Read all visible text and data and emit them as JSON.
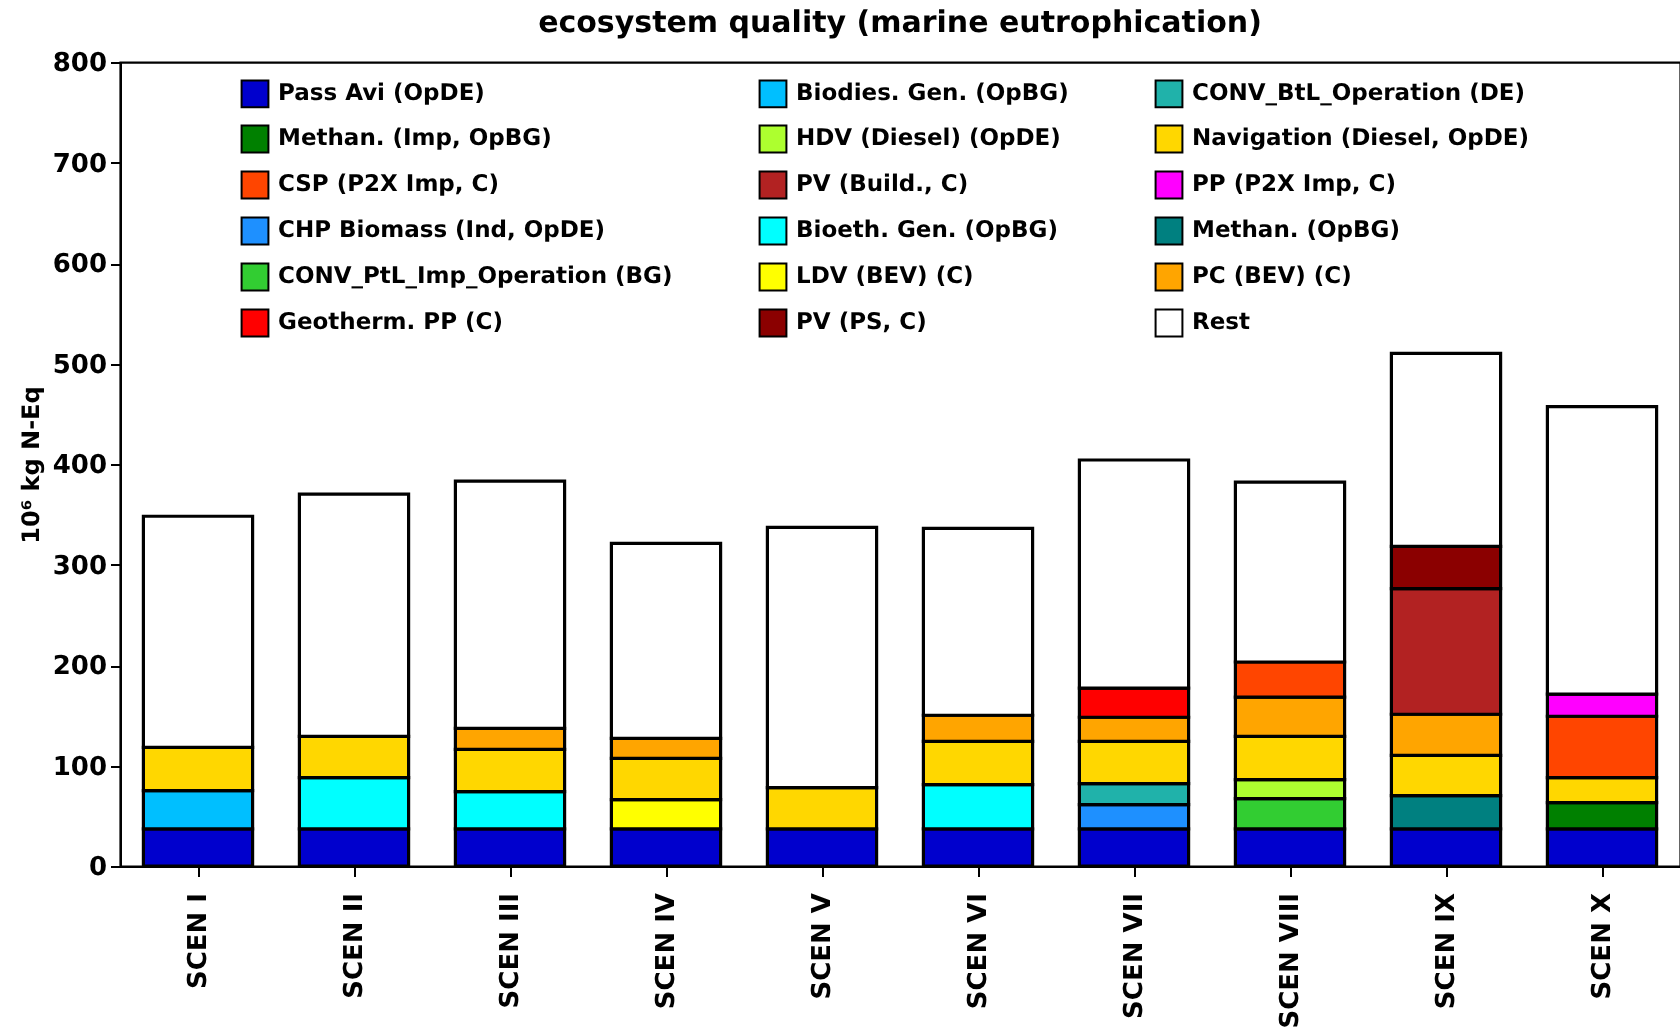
{
  "chart_data": {
    "type": "bar",
    "title": "ecosystem quality (marine eutrophication)",
    "ylabel": "10⁶ kg N-Eq",
    "stacked": true,
    "legend": "top",
    "grid": false,
    "categories": [
      "SCEN I",
      "SCEN II",
      "SCEN III",
      "SCEN IV",
      "SCEN V",
      "SCEN VI",
      "SCEN VII",
      "SCEN VIII",
      "SCEN IX",
      "SCEN X"
    ],
    "ylim": [
      0,
      800
    ],
    "yticks": [
      0,
      100,
      200,
      300,
      400,
      500,
      600,
      700,
      800
    ],
    "series": [
      {
        "name": "Pass Avi (OpDE)",
        "color": "#0000cd",
        "values": [
          37,
          37,
          37,
          37,
          37,
          37,
          37,
          37,
          37,
          37
        ]
      },
      {
        "name": "CHP Biomass (Ind, OpDE)",
        "color": "#1e90ff",
        "values": [
          null,
          null,
          null,
          null,
          null,
          null,
          24,
          null,
          null,
          null
        ]
      },
      {
        "name": "Biodies. Gen. (OpBG)",
        "color": "#00bfff",
        "values": [
          38,
          null,
          null,
          null,
          null,
          null,
          null,
          null,
          null,
          null
        ]
      },
      {
        "name": "Bioeth. Gen. (OpBG)",
        "color": "#00ffff",
        "values": [
          null,
          51,
          37,
          null,
          null,
          44,
          null,
          null,
          null,
          null
        ]
      },
      {
        "name": "CONV_BtL_Operation (DE)",
        "color": "#20b2aa",
        "values": [
          null,
          null,
          null,
          null,
          null,
          null,
          21,
          null,
          null,
          null
        ]
      },
      {
        "name": "Methan. (OpBG)",
        "color": "#008080",
        "values": [
          null,
          null,
          null,
          null,
          null,
          null,
          null,
          null,
          33,
          null
        ]
      },
      {
        "name": "Methan. (Imp, OpBG)",
        "color": "#008000",
        "values": [
          null,
          null,
          null,
          null,
          null,
          null,
          null,
          null,
          null,
          26
        ]
      },
      {
        "name": "CONV_PtL_Imp_Operation (BG)",
        "color": "#32cd32",
        "values": [
          null,
          null,
          null,
          null,
          null,
          null,
          null,
          30,
          null,
          null
        ]
      },
      {
        "name": "HDV (Diesel) (OpDE)",
        "color": "#adff2f",
        "values": [
          null,
          null,
          null,
          null,
          null,
          null,
          null,
          19,
          null,
          null
        ]
      },
      {
        "name": "LDV (BEV) (C)",
        "color": "#ffff00",
        "values": [
          null,
          null,
          null,
          29,
          null,
          null,
          null,
          null,
          null,
          null
        ]
      },
      {
        "name": "Navigation (Diesel, OpDE)",
        "color": "#ffd700",
        "values": [
          43,
          41,
          42,
          41,
          41,
          43,
          42,
          43,
          40,
          25
        ]
      },
      {
        "name": "PC (BEV) (C)",
        "color": "#ffa500",
        "values": [
          null,
          null,
          21,
          20,
          null,
          26,
          24,
          39,
          41,
          null
        ]
      },
      {
        "name": "CSP (P2X Imp, C)",
        "color": "#ff4500",
        "values": [
          null,
          null,
          null,
          null,
          null,
          null,
          null,
          35,
          null,
          61
        ]
      },
      {
        "name": "Geotherm. PP (C)",
        "color": "#ff0000",
        "values": [
          null,
          null,
          null,
          null,
          null,
          null,
          29,
          null,
          null,
          null
        ]
      },
      {
        "name": "PV (Build., C)",
        "color": "#b22222",
        "values": [
          null,
          null,
          null,
          null,
          null,
          null,
          null,
          null,
          125,
          null
        ]
      },
      {
        "name": "PV (PS, C)",
        "color": "#8b0000",
        "values": [
          null,
          null,
          null,
          null,
          null,
          null,
          null,
          null,
          42,
          null
        ]
      },
      {
        "name": "PP (P2X Imp, C)",
        "color": "#ff00ff",
        "values": [
          null,
          null,
          null,
          null,
          null,
          null,
          null,
          null,
          null,
          22
        ]
      },
      {
        "name": "Rest",
        "color": "#ffffff",
        "values": [
          230,
          241,
          246,
          194,
          259,
          186,
          227,
          179,
          192,
          286
        ]
      }
    ]
  }
}
